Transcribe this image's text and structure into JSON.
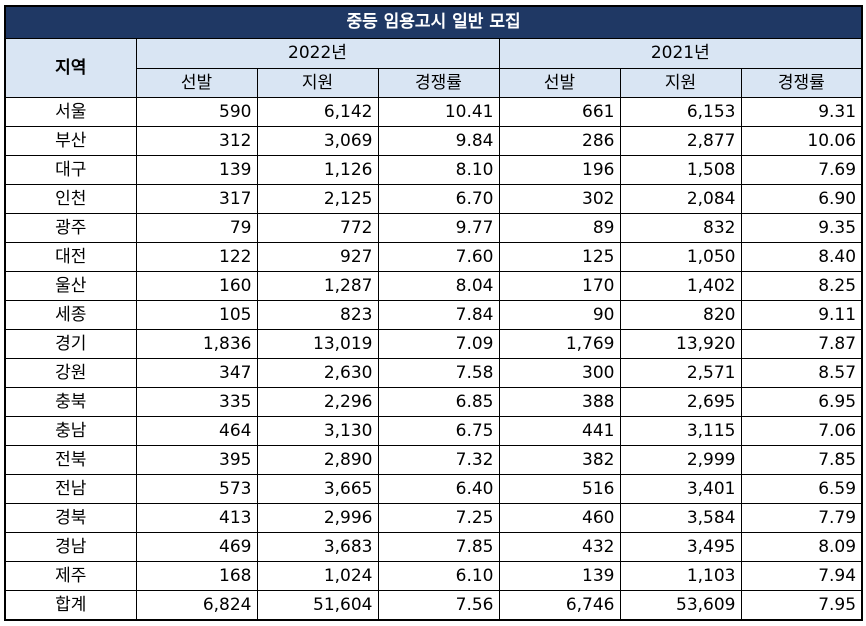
{
  "title": "중등 임용고시 일반 모집",
  "region_header": "지역",
  "years": [
    "2022년",
    "2021년"
  ],
  "sub_headers": [
    "선발",
    "지원",
    "경쟁률",
    "선발",
    "지원",
    "경쟁률"
  ],
  "rows": [
    {
      "region": "서울",
      "v": [
        "590",
        "6,142",
        "10.41",
        "661",
        "6,153",
        "9.31"
      ]
    },
    {
      "region": "부산",
      "v": [
        "312",
        "3,069",
        "9.84",
        "286",
        "2,877",
        "10.06"
      ]
    },
    {
      "region": "대구",
      "v": [
        "139",
        "1,126",
        "8.10",
        "196",
        "1,508",
        "7.69"
      ]
    },
    {
      "region": "인천",
      "v": [
        "317",
        "2,125",
        "6.70",
        "302",
        "2,084",
        "6.90"
      ]
    },
    {
      "region": "광주",
      "v": [
        "79",
        "772",
        "9.77",
        "89",
        "832",
        "9.35"
      ]
    },
    {
      "region": "대전",
      "v": [
        "122",
        "927",
        "7.60",
        "125",
        "1,050",
        "8.40"
      ]
    },
    {
      "region": "울산",
      "v": [
        "160",
        "1,287",
        "8.04",
        "170",
        "1,402",
        "8.25"
      ]
    },
    {
      "region": "세종",
      "v": [
        "105",
        "823",
        "7.84",
        "90",
        "820",
        "9.11"
      ]
    },
    {
      "region": "경기",
      "v": [
        "1,836",
        "13,019",
        "7.09",
        "1,769",
        "13,920",
        "7.87"
      ]
    },
    {
      "region": "강원",
      "v": [
        "347",
        "2,630",
        "7.58",
        "300",
        "2,571",
        "8.57"
      ]
    },
    {
      "region": "충북",
      "v": [
        "335",
        "2,296",
        "6.85",
        "388",
        "2,695",
        "6.95"
      ]
    },
    {
      "region": "충남",
      "v": [
        "464",
        "3,130",
        "6.75",
        "441",
        "3,115",
        "7.06"
      ]
    },
    {
      "region": "전북",
      "v": [
        "395",
        "2,890",
        "7.32",
        "382",
        "2,999",
        "7.85"
      ]
    },
    {
      "region": "전남",
      "v": [
        "573",
        "3,665",
        "6.40",
        "516",
        "3,401",
        "6.59"
      ]
    },
    {
      "region": "경북",
      "v": [
        "413",
        "2,996",
        "7.25",
        "460",
        "3,584",
        "7.79"
      ]
    },
    {
      "region": "경남",
      "v": [
        "469",
        "3,683",
        "7.85",
        "432",
        "3,495",
        "8.09"
      ]
    },
    {
      "region": "제주",
      "v": [
        "168",
        "1,024",
        "6.10",
        "139",
        "1,103",
        "7.94"
      ]
    },
    {
      "region": "합계",
      "v": [
        "6,824",
        "51,604",
        "7.56",
        "6,746",
        "53,609",
        "7.95"
      ]
    }
  ],
  "colors": {
    "title_bg": "#1f3864",
    "header_bg": "#d9e5f3"
  }
}
